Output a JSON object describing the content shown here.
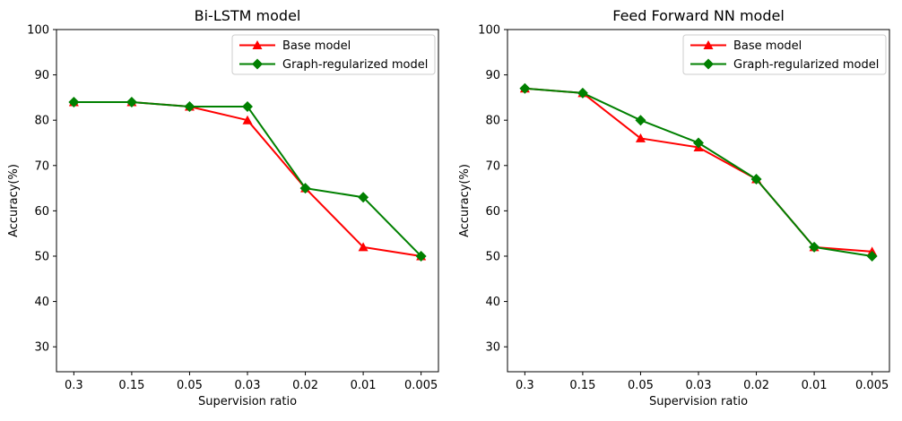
{
  "figure": {
    "background": "#ffffff",
    "frame_color": "#000000",
    "legend_border_color": "#cccccc"
  },
  "chart_data": [
    {
      "type": "line",
      "title": "Bi-LSTM model",
      "xlabel": "Supervision ratio",
      "ylabel": "Accuracy(%)",
      "categories": [
        "0.3",
        "0.15",
        "0.05",
        "0.03",
        "0.02",
        "0.01",
        "0.005"
      ],
      "yticks": [
        30,
        40,
        50,
        60,
        70,
        80,
        90,
        100
      ],
      "ylim": [
        24.5,
        100
      ],
      "grid": false,
      "legend_position": "upper right",
      "series": [
        {
          "name": "Base model",
          "color": "#ff0000",
          "marker": "triangle",
          "values": [
            84,
            84,
            83,
            80,
            65,
            52,
            50
          ]
        },
        {
          "name": "Graph-regularized model",
          "color": "#008000",
          "marker": "diamond",
          "values": [
            84,
            84,
            83,
            83,
            65,
            63,
            50
          ]
        }
      ]
    },
    {
      "type": "line",
      "title": "Feed Forward NN model",
      "xlabel": "Supervision ratio",
      "ylabel": "Accuracy(%)",
      "categories": [
        "0.3",
        "0.15",
        "0.05",
        "0.03",
        "0.02",
        "0.01",
        "0.005"
      ],
      "yticks": [
        30,
        40,
        50,
        60,
        70,
        80,
        90,
        100
      ],
      "ylim": [
        24.5,
        100
      ],
      "grid": false,
      "legend_position": "upper right",
      "series": [
        {
          "name": "Base model",
          "color": "#ff0000",
          "marker": "triangle",
          "values": [
            87,
            86,
            76,
            74,
            67,
            52,
            51
          ]
        },
        {
          "name": "Graph-regularized model",
          "color": "#008000",
          "marker": "diamond",
          "values": [
            87,
            86,
            80,
            75,
            67,
            52,
            50
          ]
        }
      ]
    }
  ]
}
